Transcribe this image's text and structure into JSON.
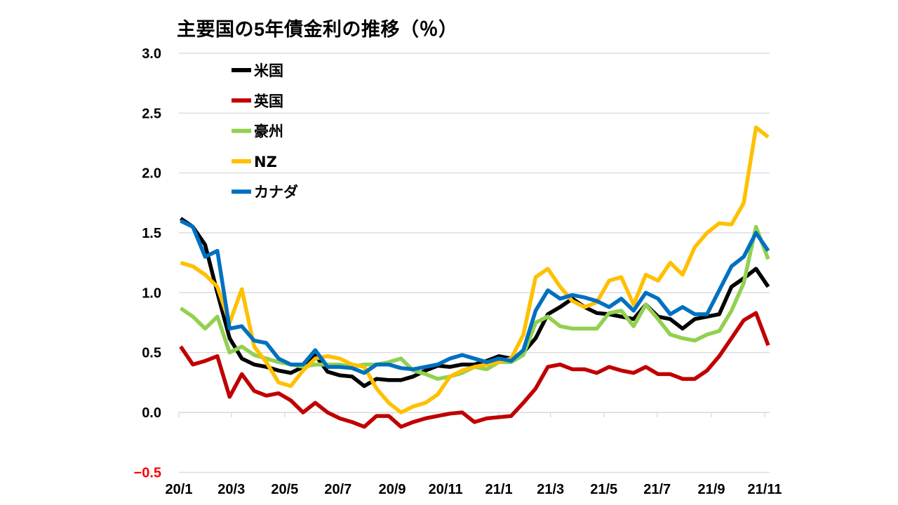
{
  "chart_data": {
    "type": "line",
    "title": "主要国の5年債金利の推移（％）",
    "xlabel": "",
    "ylabel": "",
    "ylim": [
      -0.5,
      3.0
    ],
    "yticks": [
      "3.0",
      "2.5",
      "2.0",
      "1.5",
      "1.0",
      "0.5",
      "0.0",
      "−0.5"
    ],
    "ytick_values": [
      3.0,
      2.5,
      2.0,
      1.5,
      1.0,
      0.5,
      0.0,
      -0.5
    ],
    "negative_tick_color": "#ff0000",
    "xticks": [
      "20/1",
      "20/3",
      "20/5",
      "20/7",
      "20/9",
      "20/11",
      "21/1",
      "21/3",
      "21/5",
      "21/7",
      "21/9",
      "21/11"
    ],
    "xtick_dates": [
      "2020-01-01",
      "2020-03-01",
      "2020-05-01",
      "2020-07-01",
      "2020-09-01",
      "2020-11-01",
      "2021-01-01",
      "2021-03-01",
      "2021-05-01",
      "2021-07-01",
      "2021-09-01",
      "2021-11-01"
    ],
    "grid": true,
    "legend_position": "top-left",
    "x": [
      "2020-01-03",
      "2020-01-17",
      "2020-01-31",
      "2020-02-14",
      "2020-02-28",
      "2020-03-13",
      "2020-03-27",
      "2020-04-10",
      "2020-04-24",
      "2020-05-08",
      "2020-05-22",
      "2020-06-05",
      "2020-06-19",
      "2020-07-03",
      "2020-07-17",
      "2020-07-31",
      "2020-08-14",
      "2020-08-28",
      "2020-09-11",
      "2020-09-25",
      "2020-10-09",
      "2020-10-23",
      "2020-11-06",
      "2020-11-20",
      "2020-12-04",
      "2020-12-18",
      "2021-01-01",
      "2021-01-15",
      "2021-01-29",
      "2021-02-12",
      "2021-02-26",
      "2021-03-12",
      "2021-03-26",
      "2021-04-09",
      "2021-04-23",
      "2021-05-07",
      "2021-05-21",
      "2021-06-04",
      "2021-06-18",
      "2021-07-02",
      "2021-07-16",
      "2021-07-30",
      "2021-08-13",
      "2021-08-27",
      "2021-09-10",
      "2021-09-24",
      "2021-10-08",
      "2021-10-22",
      "2021-11-05"
    ],
    "series": [
      {
        "name": "米国",
        "color": "#000000",
        "values": [
          1.62,
          1.55,
          1.4,
          1.0,
          0.62,
          0.45,
          0.4,
          0.38,
          0.35,
          0.33,
          0.38,
          0.48,
          0.34,
          0.31,
          0.3,
          0.22,
          0.28,
          0.27,
          0.27,
          0.3,
          0.35,
          0.39,
          0.38,
          0.4,
          0.4,
          0.43,
          0.47,
          0.45,
          0.5,
          0.62,
          0.82,
          0.88,
          0.95,
          0.88,
          0.83,
          0.82,
          0.8,
          0.78,
          0.9,
          0.8,
          0.78,
          0.7,
          0.78,
          0.8,
          0.82,
          1.05,
          1.12,
          1.2,
          1.05
        ]
      },
      {
        "name": "英国",
        "color": "#c00000",
        "values": [
          0.55,
          0.4,
          0.43,
          0.47,
          0.13,
          0.32,
          0.18,
          0.14,
          0.16,
          0.1,
          0.0,
          0.08,
          0.0,
          -0.05,
          -0.08,
          -0.12,
          -0.03,
          -0.03,
          -0.12,
          -0.08,
          -0.05,
          -0.03,
          -0.01,
          0.0,
          -0.08,
          -0.05,
          -0.04,
          -0.03,
          0.08,
          0.2,
          0.38,
          0.4,
          0.36,
          0.36,
          0.33,
          0.38,
          0.35,
          0.33,
          0.38,
          0.32,
          0.32,
          0.28,
          0.28,
          0.35,
          0.47,
          0.62,
          0.77,
          0.83,
          0.56
        ]
      },
      {
        "name": "豪州",
        "color": "#92d050",
        "values": [
          0.87,
          0.8,
          0.7,
          0.8,
          0.5,
          0.55,
          0.48,
          0.45,
          0.42,
          0.4,
          0.38,
          0.4,
          0.4,
          0.4,
          0.38,
          0.4,
          0.4,
          0.42,
          0.45,
          0.35,
          0.32,
          0.28,
          0.3,
          0.33,
          0.38,
          0.36,
          0.42,
          0.42,
          0.48,
          0.75,
          0.8,
          0.72,
          0.7,
          0.7,
          0.7,
          0.83,
          0.85,
          0.72,
          0.9,
          0.78,
          0.65,
          0.62,
          0.6,
          0.65,
          0.68,
          0.85,
          1.08,
          1.55,
          1.28
        ]
      },
      {
        "name": "NZ",
        "color": "#ffc000",
        "values": [
          1.25,
          1.22,
          1.15,
          1.05,
          0.75,
          1.03,
          0.55,
          0.42,
          0.25,
          0.22,
          0.35,
          0.45,
          0.47,
          0.45,
          0.4,
          0.38,
          0.2,
          0.08,
          0.0,
          0.05,
          0.08,
          0.15,
          0.3,
          0.35,
          0.38,
          0.4,
          0.42,
          0.45,
          0.65,
          1.13,
          1.2,
          1.05,
          0.93,
          0.88,
          0.92,
          1.1,
          1.13,
          0.9,
          1.15,
          1.1,
          1.25,
          1.15,
          1.38,
          1.5,
          1.58,
          1.57,
          1.75,
          2.38,
          2.3
        ]
      },
      {
        "name": "カナダ",
        "color": "#0070c0",
        "values": [
          1.6,
          1.55,
          1.3,
          1.35,
          0.7,
          0.72,
          0.6,
          0.58,
          0.45,
          0.4,
          0.4,
          0.52,
          0.38,
          0.38,
          0.37,
          0.33,
          0.4,
          0.4,
          0.37,
          0.36,
          0.38,
          0.4,
          0.45,
          0.48,
          0.45,
          0.42,
          0.45,
          0.43,
          0.52,
          0.85,
          1.02,
          0.95,
          0.98,
          0.96,
          0.93,
          0.88,
          0.95,
          0.85,
          1.0,
          0.95,
          0.82,
          0.88,
          0.82,
          0.82,
          1.02,
          1.22,
          1.3,
          1.5,
          1.35
        ]
      }
    ]
  }
}
